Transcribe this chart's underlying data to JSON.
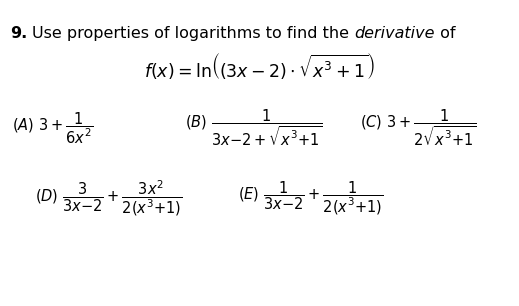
{
  "background_color": "#ffffff",
  "fig_width": 5.19,
  "fig_height": 3.06,
  "dpi": 100,
  "title_line1_normal1": "Use properties of logarithms to find the ",
  "title_line1_italic": "derivative",
  "title_line1_normal2": " of",
  "formula": "$f(x) = \\ln\\!\\left((3x-2)\\cdot\\sqrt{x^3+1}\\right)$",
  "choice_A": "$(A)\\ 3 + \\dfrac{1}{6x^2}$",
  "choice_B": "$(B)\\ \\dfrac{1}{3x{-}2+\\sqrt{x^3{+}1}}$",
  "choice_C": "$(C)\\ 3 + \\dfrac{1}{2\\sqrt{x^3{+}1}}$",
  "choice_D": "$(D)\\ \\dfrac{3}{3x{-}2} + \\dfrac{3x^2}{2(x^3{+}1)}$",
  "choice_E": "$(E)\\ \\dfrac{1}{3x{-}2} + \\dfrac{1}{2(x^3{+}1)}$",
  "fontsize_header": 11.5,
  "fontsize_formula": 12.5,
  "fontsize_choices": 10.5
}
